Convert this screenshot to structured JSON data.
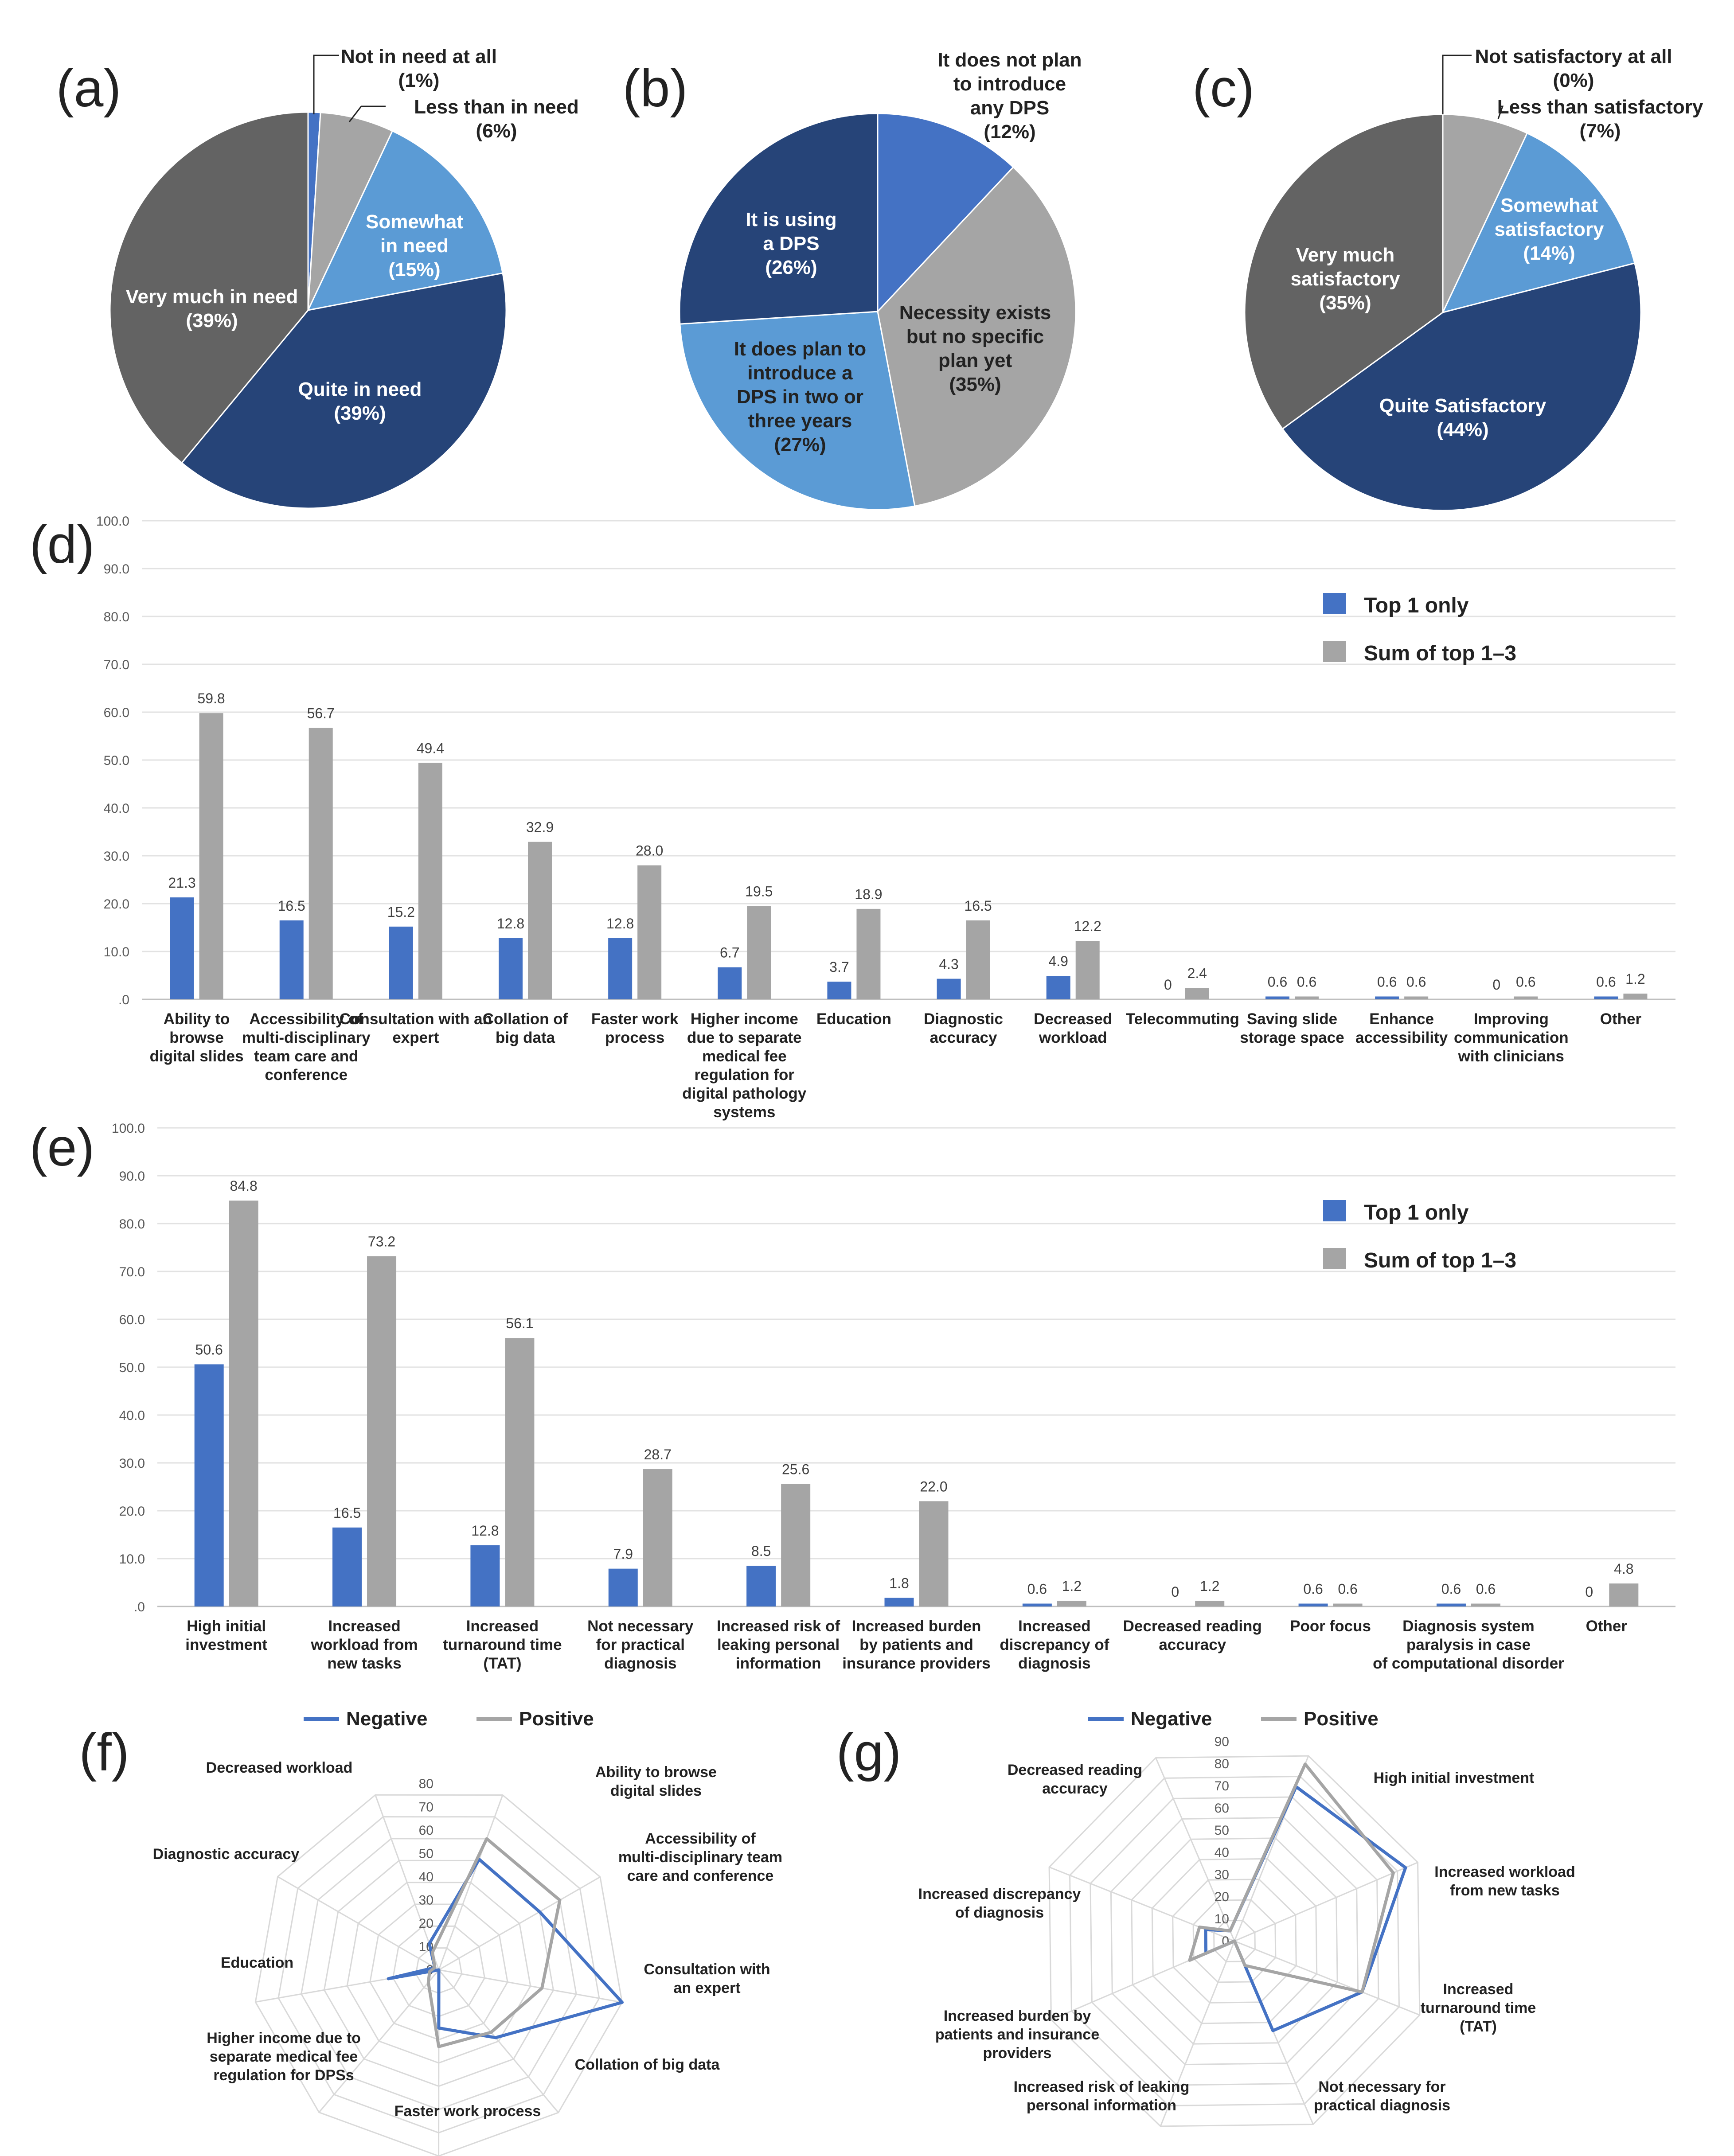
{
  "chart_data": [
    {
      "panel": "(a)",
      "type": "pie",
      "slices": [
        {
          "label": "Not in need at all",
          "pct": "(1%)",
          "value": 1,
          "color": "#4472C4"
        },
        {
          "label": "Less than in need",
          "pct": "(6%)",
          "value": 6,
          "color": "#A5A5A5"
        },
        {
          "label": "Somewhat in need",
          "pct": "(15%)",
          "value": 15,
          "color": "#5B9BD5"
        },
        {
          "label": "Quite in need",
          "pct": "(39%)",
          "value": 39,
          "color": "#264478"
        },
        {
          "label": "Very much in need",
          "pct": "(39%)",
          "value": 39,
          "color": "#636363"
        }
      ]
    },
    {
      "panel": "(b)",
      "type": "pie",
      "slices": [
        {
          "label": "It does not plan to introduce any DPS",
          "pct": "(12%)",
          "value": 12,
          "color": "#4472C4"
        },
        {
          "label": "Necessity exists but no specific plan yet",
          "pct": "(35%)",
          "value": 35,
          "color": "#A5A5A5"
        },
        {
          "label": "It does plan to introduce a DPS in two or three years",
          "pct": "(27%)",
          "value": 27,
          "color": "#5B9BD5"
        },
        {
          "label": "It is using a DPS",
          "pct": "(26%)",
          "value": 26,
          "color": "#264478"
        }
      ]
    },
    {
      "panel": "(c)",
      "type": "pie",
      "slices": [
        {
          "label": "Not satisfactory at all",
          "pct": "(0%)",
          "value": 0,
          "color": "#4472C4"
        },
        {
          "label": "Less than satisfactory",
          "pct": "(7%)",
          "value": 7,
          "color": "#A5A5A5"
        },
        {
          "label": "Somewhat satisfactory",
          "pct": "(14%)",
          "value": 14,
          "color": "#5B9BD5"
        },
        {
          "label": "Quite Satisfactory",
          "pct": "(44%)",
          "value": 44,
          "color": "#264478"
        },
        {
          "label": "Very much satisfactory",
          "pct": "(35%)",
          "value": 35,
          "color": "#636363"
        }
      ]
    },
    {
      "panel": "(d)",
      "type": "bar",
      "ylim": [
        0,
        100
      ],
      "yticks": [
        "100.0",
        "90.0",
        "80.0",
        "70.0",
        "60.0",
        "50.0",
        "40.0",
        "30.0",
        "20.0",
        "10.0",
        ".0"
      ],
      "categories": [
        "Ability to browse digital slides",
        "Accessibility of multi-disciplinary team care and conference",
        "Consultation with an expert",
        "Collation of big data",
        "Faster work process",
        "Higher income due to separate medical fee regulation for digital pathology systems",
        "Education",
        "Diagnostic accuracy",
        "Decreased workload",
        "Telecommuting",
        "Saving slide storage space",
        "Enhance accessibility",
        "Improving communication with clinicians",
        "Other"
      ],
      "series": [
        {
          "name": "Top 1 only",
          "color": "#4472C4",
          "values": [
            21.3,
            16.5,
            15.2,
            12.8,
            12.8,
            6.7,
            3.7,
            4.3,
            4.9,
            0,
            0.6,
            0.6,
            0,
            0.6
          ],
          "labels": [
            "21.3",
            "16.5",
            "15.2",
            "12.8",
            "12.8",
            "6.7",
            "3.7",
            "4.3",
            "4.9",
            "0",
            "0.6",
            "0.6",
            "0",
            "0.6"
          ]
        },
        {
          "name": "Sum of top 1–3",
          "color": "#A5A5A5",
          "values": [
            59.8,
            56.7,
            49.4,
            32.9,
            28.0,
            19.5,
            18.9,
            16.5,
            12.2,
            2.4,
            0.6,
            0.6,
            0.6,
            1.2
          ],
          "labels": [
            "59.8",
            "56.7",
            "49.4",
            "32.9",
            "28.0",
            "19.5",
            "18.9",
            "16.5",
            "12.2",
            "2.4",
            "0.6",
            "0.6",
            "0.6",
            "1.2"
          ]
        }
      ]
    },
    {
      "panel": "(e)",
      "type": "bar",
      "ylim": [
        0,
        100
      ],
      "yticks": [
        "100.0",
        "90.0",
        "80.0",
        "70.0",
        "60.0",
        "50.0",
        "40.0",
        "30.0",
        "20.0",
        "10.0",
        ".0"
      ],
      "categories": [
        "High initial investment",
        "Increased workload from new tasks",
        "Increased turnaround time (TAT)",
        "Not necessary for practical diagnosis",
        "Increased risk of leaking personal information",
        "Increased burden by patients and insurance providers",
        "Increased discrepancy of diagnosis",
        "Decreased reading accuracy",
        "Poor focus",
        "Diagnosis system paralysis in case of computational disorder",
        "Other"
      ],
      "series": [
        {
          "name": "Top 1 only",
          "color": "#4472C4",
          "values": [
            50.6,
            16.5,
            12.8,
            7.9,
            8.5,
            1.8,
            0.6,
            0,
            0.6,
            0.6,
            0
          ],
          "labels": [
            "50.6",
            "16.5",
            "12.8",
            "7.9",
            "8.5",
            "1.8",
            "0.6",
            "0",
            "0.6",
            "0.6",
            "0"
          ]
        },
        {
          "name": "Sum of top 1–3",
          "color": "#A5A5A5",
          "values": [
            84.8,
            73.2,
            56.1,
            28.7,
            25.6,
            22.0,
            1.2,
            1.2,
            0.6,
            0.6,
            4.8
          ],
          "labels": [
            "84.8",
            "73.2",
            "56.1",
            "28.7",
            "25.6",
            "22.0",
            "1.2",
            "1.2",
            "0.6",
            "0.6",
            "4.8"
          ]
        }
      ]
    },
    {
      "panel": "(f)",
      "type": "radar",
      "rmax": 80,
      "rticks": [
        "0",
        "10",
        "20",
        "30",
        "40",
        "50",
        "60",
        "70",
        "80"
      ],
      "axes": [
        "Ability to browse digital slides",
        "Accessibility of multi-disciplinary team care and conference",
        "Consultation with an expert",
        "Collation of big data",
        "Faster work process",
        "Higher income due to separate medical fee regulation for DPSs",
        "Education",
        "Diagnostic accuracy",
        "Decreased workload"
      ],
      "series": [
        {
          "name": "Negative",
          "color": "#4472C4",
          "values": [
            50.6,
            50,
            80,
            38,
            25,
            0,
            22,
            2,
            12
          ]
        },
        {
          "name": "Positive",
          "color": "#A5A5A5",
          "values": [
            60,
            60,
            45,
            35,
            33,
            7,
            4,
            2,
            8
          ]
        }
      ]
    },
    {
      "panel": "(g)",
      "type": "radar",
      "rmax": 90,
      "rticks": [
        "0",
        "10",
        "20",
        "30",
        "40",
        "50",
        "60",
        "70",
        "80",
        "90"
      ],
      "axes": [
        "High initial investment",
        "Increased workload from new tasks",
        "Increased turnaround time (TAT)",
        "Not necessary for practical diagnosis",
        "Increased risk of leaking personal information",
        "Increased burden by patients and insurance providers",
        "Increased discrepancy of diagnosis",
        "Decreased reading accuracy"
      ],
      "series": [
        {
          "name": "Negative",
          "color": "#4472C4",
          "values": [
            75,
            84,
            62,
            44,
            0,
            14,
            14,
            5
          ]
        },
        {
          "name": "Positive",
          "color": "#A5A5A5",
          "values": [
            86,
            78,
            62,
            12,
            0,
            22,
            17,
            5
          ]
        }
      ]
    }
  ],
  "panel_labels": [
    "(a)",
    "(b)",
    "(c)",
    "(d)",
    "(e)",
    "(f)",
    "(g)"
  ],
  "pie_text": {
    "a": {
      "s0": [
        "Not in need at all",
        "(1%)"
      ],
      "s1": [
        "Less than in need",
        "(6%)"
      ],
      "s2": [
        "Somewhat",
        "in need",
        "(15%)"
      ],
      "s3": [
        "Quite in need",
        "(39%)"
      ],
      "s4": [
        "Very much in need",
        "(39%)"
      ]
    },
    "b": {
      "s0": [
        "It does not plan",
        "to introduce",
        "any DPS",
        "(12%)"
      ],
      "s1": [
        "Necessity exists",
        "but no specific",
        "plan yet",
        "(35%)"
      ],
      "s2": [
        "It does plan to",
        "introduce a",
        "DPS in two or",
        "three years",
        "(27%)"
      ],
      "s3": [
        "It is using",
        "a DPS",
        "(26%)"
      ]
    },
    "c": {
      "s0": [
        "Not satisfactory at all",
        "(0%)"
      ],
      "s1": [
        "Less than satisfactory",
        "(7%)"
      ],
      "s2": [
        "Somewhat",
        "satisfactory",
        "(14%)"
      ],
      "s3": [
        "Quite Satisfactory",
        "(44%)"
      ],
      "s4": [
        "Very much",
        "satisfactory",
        "(35%)"
      ]
    }
  },
  "bar_cat_lines": {
    "d": [
      [
        "Ability to",
        "browse",
        "digital slides"
      ],
      [
        "Accessibility of",
        "multi-disciplinary",
        "team care and",
        "conference"
      ],
      [
        "Consultation with an",
        "expert"
      ],
      [
        "Collation of",
        "big data"
      ],
      [
        "Faster work",
        "process"
      ],
      [
        "Higher income",
        "due to separate",
        "medical fee",
        "regulation for",
        "digital pathology",
        "systems"
      ],
      [
        "Education"
      ],
      [
        "Diagnostic",
        "accuracy"
      ],
      [
        "Decreased",
        "workload"
      ],
      [
        "Telecommuting"
      ],
      [
        "Saving slide",
        "storage space"
      ],
      [
        "Enhance",
        "accessibility"
      ],
      [
        "Improving",
        "communication",
        "with clinicians"
      ],
      [
        "Other"
      ]
    ],
    "e": [
      [
        "High initial",
        "investment"
      ],
      [
        "Increased",
        "workload from",
        "new tasks"
      ],
      [
        "Increased",
        "turnaround time",
        "(TAT)"
      ],
      [
        "Not necessary",
        "for practical",
        "diagnosis"
      ],
      [
        "Increased risk of",
        "leaking personal",
        "information"
      ],
      [
        "Increased burden",
        "by patients and",
        "insurance providers"
      ],
      [
        "Increased",
        "discrepancy of",
        "diagnosis"
      ],
      [
        "Decreased reading",
        "accuracy"
      ],
      [
        "Poor focus"
      ],
      [
        "Diagnosis system",
        "paralysis in case",
        "of computational disorder"
      ],
      [
        "Other"
      ]
    ]
  },
  "radar_axis_lines": {
    "f": [
      [
        "Ability to browse",
        "digital slides"
      ],
      [
        "Accessibility of",
        "multi-disciplinary team",
        "care and conference"
      ],
      [
        "Consultation with",
        "an expert"
      ],
      [
        "Collation of big data"
      ],
      [
        "Faster work process"
      ],
      [
        "Higher income due to",
        "separate medical fee",
        "regulation for DPSs"
      ],
      [
        "Education"
      ],
      [
        "Diagnostic accuracy"
      ],
      [
        "Decreased workload"
      ]
    ],
    "g": [
      [
        "High initial investment"
      ],
      [
        "Increased workload",
        "from new tasks"
      ],
      [
        "Increased",
        "turnaround time",
        "(TAT)"
      ],
      [
        "Not necessary for",
        "practical diagnosis"
      ],
      [
        "Increased risk of leaking",
        "personal information"
      ],
      [
        "Increased burden by",
        "patients and insurance",
        "providers"
      ],
      [
        "Increased discrepancy",
        "of diagnosis"
      ],
      [
        "Decreased reading",
        "accuracy"
      ]
    ]
  }
}
